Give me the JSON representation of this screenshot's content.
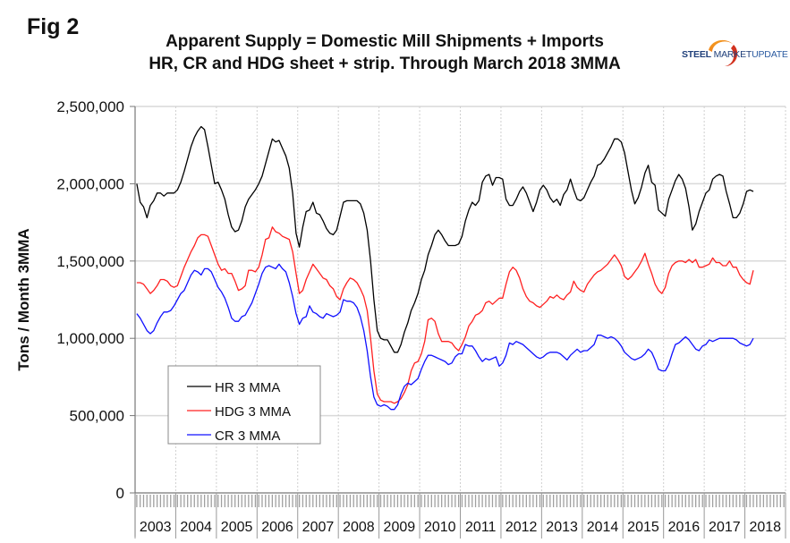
{
  "figure": {
    "label": "Fig 2",
    "title_line1": "Apparent Supply = Domestic Mill Shipments + Imports",
    "title_line2": "HR, CR and HDG sheet + strip. Through March 2018 3MMA"
  },
  "logo": {
    "word1": "STEEL",
    "word2": "MARKET",
    "word3": "UPDATE",
    "colors": {
      "arc_orange": "#f07f1a",
      "arc_red": "#d2321e",
      "text_blue": "#1f3f7a"
    }
  },
  "chart_data": {
    "type": "line",
    "title": "Apparent Supply = Domestic Mill Shipments + Imports — HR, CR and HDG sheet + strip. Through March 2018 3MMA",
    "xlabel": "",
    "ylabel": "Tons / Month 3MMA",
    "ylim": [
      0,
      2500000
    ],
    "yticks": [
      0,
      500000,
      1000000,
      1500000,
      2000000,
      2500000
    ],
    "ytick_labels": [
      "0",
      "500,000",
      "1,000,000",
      "1,500,000",
      "2,000,000",
      "2,500,000"
    ],
    "x_start": "2003-01",
    "x_end": "2018-03",
    "x_frequency": "monthly",
    "xtick_labels": [
      "2003",
      "2004",
      "2005",
      "2006",
      "2007",
      "2008",
      "2009",
      "2010",
      "2011",
      "2012",
      "2013",
      "2014",
      "2015",
      "2016",
      "2017",
      "2018"
    ],
    "grid": true,
    "legend": {
      "placement": "lower-left"
    },
    "series": [
      {
        "name": "HR 3 MMA",
        "color": "#000000",
        "values": [
          2000000,
          1880000,
          1850000,
          1780000,
          1860000,
          1890000,
          1940000,
          1940000,
          1920000,
          1940000,
          1940000,
          1940000,
          1960000,
          2010000,
          2080000,
          2160000,
          2240000,
          2300000,
          2340000,
          2370000,
          2350000,
          2240000,
          2120000,
          2000000,
          2010000,
          1960000,
          1900000,
          1800000,
          1720000,
          1690000,
          1700000,
          1760000,
          1850000,
          1900000,
          1930000,
          1960000,
          2000000,
          2050000,
          2130000,
          2210000,
          2290000,
          2270000,
          2280000,
          2230000,
          2180000,
          2100000,
          1940000,
          1680000,
          1590000,
          1720000,
          1820000,
          1830000,
          1880000,
          1810000,
          1800000,
          1760000,
          1710000,
          1680000,
          1670000,
          1700000,
          1790000,
          1880000,
          1890000,
          1890000,
          1890000,
          1890000,
          1870000,
          1810000,
          1700000,
          1500000,
          1250000,
          1050000,
          1000000,
          990000,
          990000,
          950000,
          910000,
          910000,
          960000,
          1040000,
          1100000,
          1180000,
          1230000,
          1290000,
          1380000,
          1440000,
          1540000,
          1600000,
          1670000,
          1700000,
          1670000,
          1630000,
          1600000,
          1600000,
          1600000,
          1610000,
          1660000,
          1760000,
          1830000,
          1880000,
          1860000,
          1890000,
          2010000,
          2050000,
          2060000,
          1990000,
          2040000,
          2040000,
          2030000,
          1900000,
          1860000,
          1860000,
          1900000,
          1950000,
          1980000,
          1940000,
          1880000,
          1820000,
          1880000,
          1960000,
          1990000,
          1960000,
          1910000,
          1880000,
          1900000,
          1860000,
          1930000,
          1960000,
          2030000,
          1960000,
          1900000,
          1890000,
          1910000,
          1960000,
          2010000,
          2050000,
          2120000,
          2130000,
          2160000,
          2200000,
          2240000,
          2290000,
          2290000,
          2270000,
          2200000,
          2080000,
          1960000,
          1870000,
          1910000,
          1980000,
          2070000,
          2120000,
          2010000,
          1990000,
          1830000,
          1810000,
          1790000,
          1900000,
          1960000,
          2020000,
          2060000,
          2030000,
          1970000,
          1850000,
          1700000,
          1740000,
          1820000,
          1880000,
          1940000,
          1960000,
          2030000,
          2050000,
          2060000,
          2050000,
          1950000,
          1870000,
          1780000,
          1780000,
          1810000,
          1870000,
          1950000,
          1960000,
          1950000
        ]
      },
      {
        "name": "HDG 3 MMA",
        "color": "#ff2020",
        "values": [
          1360000,
          1360000,
          1350000,
          1320000,
          1290000,
          1310000,
          1340000,
          1380000,
          1380000,
          1370000,
          1340000,
          1330000,
          1340000,
          1400000,
          1460000,
          1510000,
          1560000,
          1600000,
          1650000,
          1670000,
          1670000,
          1660000,
          1600000,
          1540000,
          1480000,
          1440000,
          1450000,
          1420000,
          1420000,
          1370000,
          1310000,
          1320000,
          1340000,
          1440000,
          1440000,
          1430000,
          1460000,
          1540000,
          1640000,
          1650000,
          1720000,
          1690000,
          1680000,
          1660000,
          1650000,
          1640000,
          1560000,
          1420000,
          1290000,
          1310000,
          1380000,
          1430000,
          1480000,
          1450000,
          1420000,
          1390000,
          1380000,
          1340000,
          1320000,
          1270000,
          1250000,
          1320000,
          1360000,
          1390000,
          1380000,
          1360000,
          1320000,
          1270000,
          1180000,
          1000000,
          790000,
          640000,
          600000,
          590000,
          590000,
          590000,
          580000,
          590000,
          610000,
          650000,
          700000,
          790000,
          840000,
          850000,
          900000,
          980000,
          1120000,
          1130000,
          1110000,
          1030000,
          980000,
          980000,
          980000,
          970000,
          940000,
          920000,
          960000,
          1010000,
          1080000,
          1110000,
          1150000,
          1160000,
          1180000,
          1230000,
          1240000,
          1220000,
          1240000,
          1260000,
          1260000,
          1350000,
          1430000,
          1460000,
          1440000,
          1390000,
          1320000,
          1270000,
          1240000,
          1230000,
          1210000,
          1200000,
          1220000,
          1240000,
          1270000,
          1260000,
          1280000,
          1260000,
          1250000,
          1280000,
          1300000,
          1370000,
          1330000,
          1310000,
          1300000,
          1350000,
          1380000,
          1410000,
          1430000,
          1440000,
          1460000,
          1480000,
          1510000,
          1540000,
          1510000,
          1470000,
          1400000,
          1380000,
          1400000,
          1430000,
          1460000,
          1500000,
          1550000,
          1480000,
          1420000,
          1350000,
          1310000,
          1290000,
          1330000,
          1420000,
          1470000,
          1490000,
          1500000,
          1500000,
          1490000,
          1510000,
          1490000,
          1510000,
          1460000,
          1460000,
          1470000,
          1480000,
          1520000,
          1490000,
          1490000,
          1470000,
          1470000,
          1500000,
          1460000,
          1460000,
          1410000,
          1380000,
          1360000,
          1350000,
          1440000
        ]
      },
      {
        "name": "CR 3 MMA",
        "color": "#1010ff",
        "values": [
          1160000,
          1130000,
          1090000,
          1050000,
          1030000,
          1050000,
          1100000,
          1140000,
          1170000,
          1170000,
          1180000,
          1210000,
          1250000,
          1290000,
          1310000,
          1360000,
          1410000,
          1440000,
          1430000,
          1410000,
          1450000,
          1450000,
          1430000,
          1380000,
          1330000,
          1300000,
          1260000,
          1200000,
          1130000,
          1110000,
          1110000,
          1140000,
          1150000,
          1190000,
          1230000,
          1290000,
          1350000,
          1420000,
          1460000,
          1470000,
          1460000,
          1450000,
          1480000,
          1450000,
          1430000,
          1360000,
          1270000,
          1160000,
          1090000,
          1130000,
          1140000,
          1210000,
          1170000,
          1160000,
          1140000,
          1130000,
          1160000,
          1150000,
          1140000,
          1150000,
          1170000,
          1250000,
          1240000,
          1240000,
          1230000,
          1200000,
          1140000,
          1050000,
          920000,
          750000,
          620000,
          570000,
          560000,
          570000,
          560000,
          540000,
          540000,
          570000,
          640000,
          690000,
          710000,
          700000,
          720000,
          740000,
          800000,
          850000,
          890000,
          890000,
          880000,
          870000,
          860000,
          850000,
          830000,
          840000,
          880000,
          900000,
          900000,
          960000,
          950000,
          950000,
          920000,
          880000,
          850000,
          870000,
          860000,
          870000,
          880000,
          820000,
          840000,
          890000,
          970000,
          960000,
          980000,
          970000,
          960000,
          940000,
          920000,
          900000,
          880000,
          870000,
          880000,
          900000,
          910000,
          910000,
          910000,
          900000,
          880000,
          860000,
          890000,
          910000,
          930000,
          910000,
          920000,
          920000,
          940000,
          960000,
          1020000,
          1020000,
          1010000,
          1000000,
          1010000,
          1000000,
          980000,
          950000,
          910000,
          890000,
          870000,
          860000,
          870000,
          880000,
          900000,
          930000,
          910000,
          860000,
          800000,
          790000,
          790000,
          830000,
          900000,
          960000,
          970000,
          990000,
          1010000,
          990000,
          960000,
          930000,
          920000,
          950000,
          960000,
          990000,
          980000,
          990000,
          1000000,
          1000000,
          1000000,
          1000000,
          1000000,
          990000,
          970000,
          960000,
          950000,
          960000,
          1000000
        ]
      }
    ]
  }
}
